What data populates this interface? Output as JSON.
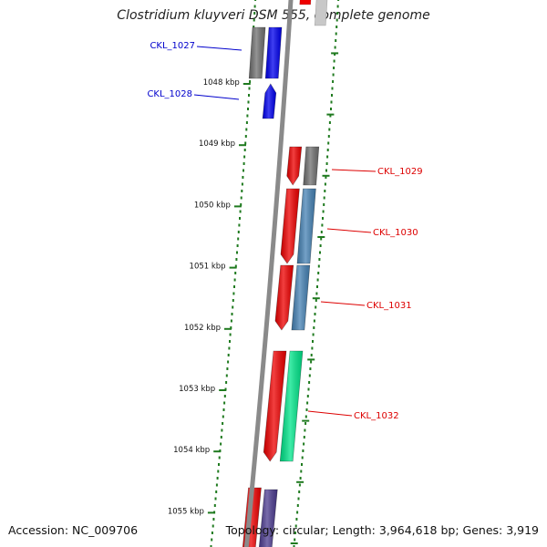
{
  "title": "Clostridium kluyveri DSM 555, complete genome",
  "footer": {
    "accession": "Accession: NC_009706",
    "topology": "Topology: circular; Length: 3,964,618 bp; Genes: 3,919"
  },
  "colors": {
    "backbone": "#8a8a8a",
    "tick": "#1f7a1f",
    "label_forward": "#0000cc",
    "label_reverse": "#dd0000"
  },
  "ticks": [
    {
      "kbp": 1048,
      "label": "1048 kbp"
    },
    {
      "kbp": 1049,
      "label": "1049 kbp"
    },
    {
      "kbp": 1050,
      "label": "1050 kbp"
    },
    {
      "kbp": 1051,
      "label": "1051 kbp"
    },
    {
      "kbp": 1052,
      "label": "1052 kbp"
    },
    {
      "kbp": 1053,
      "label": "1053 kbp"
    },
    {
      "kbp": 1054,
      "label": "1054 kbp"
    },
    {
      "kbp": 1055,
      "label": "1055 kbp"
    }
  ],
  "genes": [
    {
      "id": "CKL_1027",
      "strand": "+",
      "color": "#0000ee",
      "cog_color": "#707070"
    },
    {
      "id": "CKL_1028",
      "strand": "+",
      "color": "#0000ee"
    },
    {
      "id": "CKL_1029",
      "strand": "-",
      "color": "#ee0000",
      "cog_color": "#707070"
    },
    {
      "id": "CKL_1030",
      "strand": "-",
      "color": "#ee0000",
      "cog_color": "#4682b4"
    },
    {
      "id": "CKL_1031",
      "strand": "-",
      "color": "#ee0000",
      "cog_color": "#4682b4"
    },
    {
      "id": "CKL_1032",
      "strand": "-",
      "color": "#ee0000",
      "cog_color": "#00e58a"
    }
  ]
}
